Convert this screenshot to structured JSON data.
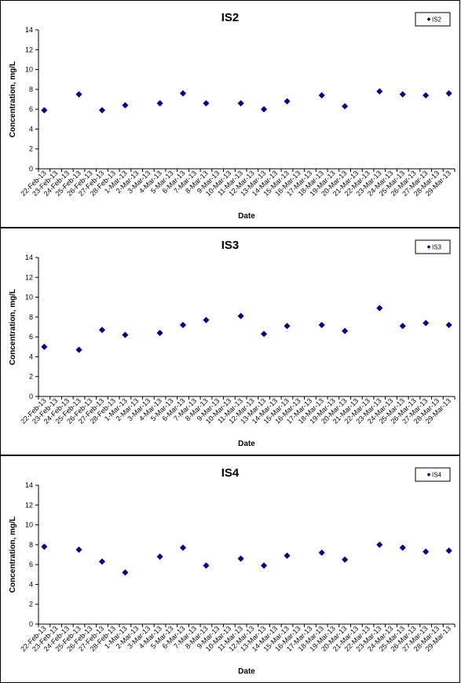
{
  "chart_data": [
    {
      "type": "scatter",
      "title": "IS2",
      "xlabel": "Date",
      "ylabel": "Concentration, mg/L",
      "ylim": [
        0,
        14
      ],
      "yticks": [
        0,
        2,
        4,
        6,
        8,
        10,
        12,
        14
      ],
      "categories": [
        "22-Feb-13",
        "23-Feb-13",
        "24-Feb-13",
        "25-Feb-13",
        "26-Feb-13",
        "27-Feb-13",
        "28-Feb-13",
        "1-Mar-13",
        "2-Mar-13",
        "3-Mar-13",
        "4-Mar-13",
        "5-Mar-13",
        "6-Mar-13",
        "7-Mar-13",
        "8-Mar-13",
        "9-Mar-13",
        "10-Mar-13",
        "11-Mar-13",
        "12-Mar-13",
        "13-Mar-13",
        "14-Mar-13",
        "15-Mar-13",
        "16-Mar-13",
        "17-Mar-13",
        "18-Mar-13",
        "19-Mar-13",
        "20-Mar-13",
        "21-Mar-13",
        "22-Mar-13",
        "23-Mar-13",
        "24-Mar-13",
        "25-Mar-13",
        "26-Mar-13",
        "27-Mar-13",
        "28-Mar-13",
        "29-Mar-13"
      ],
      "legend": "top-right",
      "marker_color": "#000080",
      "series": [
        {
          "name": "IS2",
          "points": [
            {
              "x": "22-Feb-13",
              "y": 5.9
            },
            {
              "x": "25-Feb-13",
              "y": 7.5
            },
            {
              "x": "27-Feb-13",
              "y": 5.9
            },
            {
              "x": "1-Mar-13",
              "y": 6.4
            },
            {
              "x": "4-Mar-13",
              "y": 6.6
            },
            {
              "x": "6-Mar-13",
              "y": 7.6
            },
            {
              "x": "8-Mar-13",
              "y": 6.6
            },
            {
              "x": "11-Mar-13",
              "y": 6.6
            },
            {
              "x": "13-Mar-13",
              "y": 6.0
            },
            {
              "x": "15-Mar-13",
              "y": 6.8
            },
            {
              "x": "18-Mar-13",
              "y": 7.4
            },
            {
              "x": "20-Mar-13",
              "y": 6.3
            },
            {
              "x": "23-Mar-13",
              "y": 7.8
            },
            {
              "x": "25-Mar-13",
              "y": 7.5
            },
            {
              "x": "27-Mar-13",
              "y": 7.4
            },
            {
              "x": "29-Mar-13",
              "y": 7.6
            }
          ]
        }
      ]
    },
    {
      "type": "scatter",
      "title": "IS3",
      "xlabel": "Date",
      "ylabel": "Concentration, mg/L",
      "ylim": [
        0,
        14
      ],
      "yticks": [
        0,
        2,
        4,
        6,
        8,
        10,
        12,
        14
      ],
      "categories": [
        "22-Feb-13",
        "23-Feb-13",
        "24-Feb-13",
        "25-Feb-13",
        "26-Feb-13",
        "27-Feb-13",
        "28-Feb-13",
        "1-Mar-13",
        "2-Mar-13",
        "3-Mar-13",
        "4-Mar-13",
        "5-Mar-13",
        "6-Mar-13",
        "7-Mar-13",
        "8-Mar-13",
        "9-Mar-13",
        "10-Mar-13",
        "11-Mar-13",
        "12-Mar-13",
        "13-Mar-13",
        "14-Mar-13",
        "15-Mar-13",
        "16-Mar-13",
        "17-Mar-13",
        "18-Mar-13",
        "19-Mar-13",
        "20-Mar-13",
        "21-Mar-13",
        "22-Mar-13",
        "23-Mar-13",
        "24-Mar-13",
        "25-Mar-13",
        "26-Mar-13",
        "27-Mar-13",
        "28-Mar-13",
        "29-Mar-13"
      ],
      "legend": "top-right",
      "marker_color": "#000080",
      "series": [
        {
          "name": "IS3",
          "points": [
            {
              "x": "22-Feb-13",
              "y": 5.0
            },
            {
              "x": "25-Feb-13",
              "y": 4.7
            },
            {
              "x": "27-Feb-13",
              "y": 6.7
            },
            {
              "x": "1-Mar-13",
              "y": 6.2
            },
            {
              "x": "4-Mar-13",
              "y": 6.4
            },
            {
              "x": "6-Mar-13",
              "y": 7.2
            },
            {
              "x": "8-Mar-13",
              "y": 7.7
            },
            {
              "x": "11-Mar-13",
              "y": 8.1
            },
            {
              "x": "13-Mar-13",
              "y": 6.3
            },
            {
              "x": "15-Mar-13",
              "y": 7.1
            },
            {
              "x": "18-Mar-13",
              "y": 7.2
            },
            {
              "x": "20-Mar-13",
              "y": 6.6
            },
            {
              "x": "23-Mar-13",
              "y": 8.9
            },
            {
              "x": "25-Mar-13",
              "y": 7.1
            },
            {
              "x": "27-Mar-13",
              "y": 7.4
            },
            {
              "x": "29-Mar-13",
              "y": 7.2
            }
          ]
        }
      ]
    },
    {
      "type": "scatter",
      "title": "IS4",
      "xlabel": "Date",
      "ylabel": "Concentration, mg/L",
      "ylim": [
        0,
        14
      ],
      "yticks": [
        0,
        2,
        4,
        6,
        8,
        10,
        12,
        14
      ],
      "categories": [
        "22-Feb-13",
        "23-Feb-13",
        "24-Feb-13",
        "25-Feb-13",
        "26-Feb-13",
        "27-Feb-13",
        "28-Feb-13",
        "1-Mar-13",
        "2-Mar-13",
        "3-Mar-13",
        "4-Mar-13",
        "5-Mar-13",
        "6-Mar-13",
        "7-Mar-13",
        "8-Mar-13",
        "9-Mar-13",
        "10-Mar-13",
        "11-Mar-13",
        "12-Mar-13",
        "13-Mar-13",
        "14-Mar-13",
        "15-Mar-13",
        "16-Mar-13",
        "17-Mar-13",
        "18-Mar-13",
        "19-Mar-13",
        "20-Mar-13",
        "21-Mar-13",
        "22-Mar-13",
        "23-Mar-13",
        "24-Mar-13",
        "25-Mar-13",
        "26-Mar-13",
        "27-Mar-13",
        "28-Mar-13",
        "29-Mar-13"
      ],
      "legend": "top-right",
      "marker_color": "#000080",
      "series": [
        {
          "name": "IS4",
          "points": [
            {
              "x": "22-Feb-13",
              "y": 7.8
            },
            {
              "x": "25-Feb-13",
              "y": 7.5
            },
            {
              "x": "27-Feb-13",
              "y": 6.3
            },
            {
              "x": "1-Mar-13",
              "y": 5.2
            },
            {
              "x": "4-Mar-13",
              "y": 6.8
            },
            {
              "x": "6-Mar-13",
              "y": 7.7
            },
            {
              "x": "8-Mar-13",
              "y": 5.9
            },
            {
              "x": "11-Mar-13",
              "y": 6.6
            },
            {
              "x": "13-Mar-13",
              "y": 5.9
            },
            {
              "x": "15-Mar-13",
              "y": 6.9
            },
            {
              "x": "18-Mar-13",
              "y": 7.2
            },
            {
              "x": "20-Mar-13",
              "y": 6.5
            },
            {
              "x": "23-Mar-13",
              "y": 8.0
            },
            {
              "x": "25-Mar-13",
              "y": 7.7
            },
            {
              "x": "27-Mar-13",
              "y": 7.3
            },
            {
              "x": "29-Mar-13",
              "y": 7.4
            }
          ]
        }
      ]
    }
  ]
}
